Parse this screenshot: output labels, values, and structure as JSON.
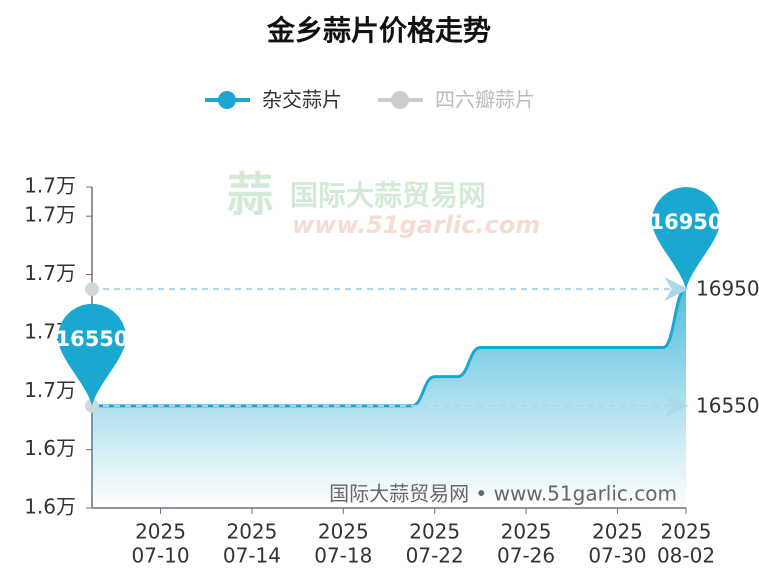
{
  "chart_data": {
    "type": "line",
    "title": "金乡蒜片价格走势",
    "watermark": {
      "logo_mark": "蒜",
      "logo_name": "国际大蒜贸易网",
      "logo_url": "www.51garlic.com",
      "footer": "国际大蒜贸易网 • www.51garlic.com"
    },
    "x": [
      "2025-07-07",
      "2025-07-08",
      "2025-07-09",
      "2025-07-10",
      "2025-07-11",
      "2025-07-12",
      "2025-07-13",
      "2025-07-14",
      "2025-07-15",
      "2025-07-16",
      "2025-07-17",
      "2025-07-18",
      "2025-07-19",
      "2025-07-20",
      "2025-07-21",
      "2025-07-22",
      "2025-07-23",
      "2025-07-24",
      "2025-07-25",
      "2025-07-26",
      "2025-07-27",
      "2025-07-28",
      "2025-07-29",
      "2025-07-30",
      "2025-07-31",
      "2025-08-01",
      "2025-08-02"
    ],
    "xticks": [
      {
        "value": "2025-07-10",
        "label": [
          "2025",
          "07-10"
        ]
      },
      {
        "value": "2025-07-14",
        "label": [
          "2025",
          "07-14"
        ]
      },
      {
        "value": "2025-07-18",
        "label": [
          "2025",
          "07-18"
        ]
      },
      {
        "value": "2025-07-22",
        "label": [
          "2025",
          "07-22"
        ]
      },
      {
        "value": "2025-07-26",
        "label": [
          "2025",
          "07-26"
        ]
      },
      {
        "value": "2025-07-30",
        "label": [
          "2025",
          "07-30"
        ]
      },
      {
        "value": "2025-08-02",
        "label": [
          "2025",
          "08-02"
        ]
      }
    ],
    "series": [
      {
        "name": "杂交蒜片",
        "color": "#1aa8d0",
        "active": true,
        "values": [
          16550,
          16550,
          16550,
          16550,
          16550,
          16550,
          16550,
          16550,
          16550,
          16550,
          16550,
          16550,
          16550,
          16550,
          16550,
          16650,
          16650,
          16750,
          16750,
          16750,
          16750,
          16750,
          16750,
          16750,
          16750,
          16750,
          16950
        ]
      },
      {
        "name": "四六瓣蒜片",
        "color": "#cccccc",
        "active": false
      }
    ],
    "mark_lines": [
      16950,
      16550
    ],
    "ylim": [
      16200,
      17300
    ],
    "yticks": [
      {
        "value": 16200,
        "label": "1.6万"
      },
      {
        "value": 16400,
        "label": "1.6万"
      },
      {
        "value": 16600,
        "label": "1.7万"
      },
      {
        "value": 16800,
        "label": "1.7万"
      },
      {
        "value": 17000,
        "label": "1.7万"
      },
      {
        "value": 17200,
        "label": "1.7万"
      },
      {
        "value": 17300,
        "label": "1.7万"
      }
    ],
    "grid": false
  }
}
